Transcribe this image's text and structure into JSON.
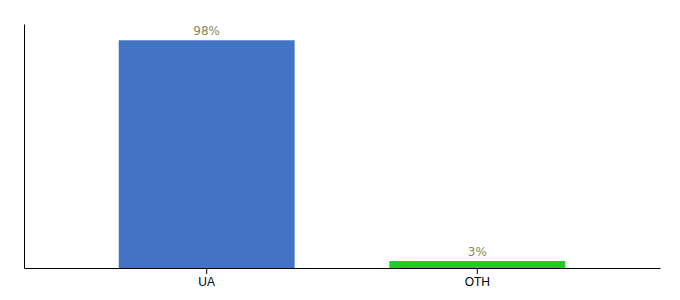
{
  "chart_data": {
    "type": "bar",
    "categories": [
      "UA",
      "OTH"
    ],
    "values": [
      98,
      3
    ],
    "value_labels": [
      "98%",
      "3%"
    ],
    "data_labels": true,
    "colors": [
      "#4472c4",
      "#22cc22"
    ],
    "ylim": [
      0,
      105
    ],
    "grid": false,
    "tick_labels": "x"
  }
}
